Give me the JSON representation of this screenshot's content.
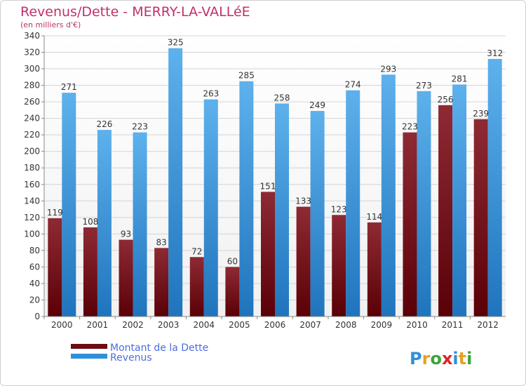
{
  "header": {
    "title": "Revenus/Dette - MERRY-LA-VALLéE",
    "subtitle": "(en milliers d'€)"
  },
  "logo": {
    "text": "Proxiti"
  },
  "colors": {
    "dette": "#6b0d12",
    "revenus": "#2f8fd8",
    "title": "#c0306a"
  },
  "chart_data": {
    "type": "bar",
    "title": "Revenus/Dette - MERRY-LA-VALLéE",
    "subtitle": "(en milliers d'€)",
    "categories": [
      "2000",
      "2001",
      "2002",
      "2003",
      "2004",
      "2005",
      "2006",
      "2007",
      "2008",
      "2009",
      "2010",
      "2011",
      "2012"
    ],
    "series": [
      {
        "name": "Montant de la Dette",
        "values": [
          119,
          108,
          93,
          83,
          72,
          60,
          151,
          133,
          123,
          114,
          223,
          256,
          239
        ]
      },
      {
        "name": "Revenus",
        "values": [
          271,
          226,
          223,
          325,
          263,
          285,
          258,
          249,
          274,
          293,
          273,
          281,
          312
        ]
      }
    ],
    "ylim": [
      0,
      340
    ],
    "yticks": [
      0,
      20,
      40,
      60,
      80,
      100,
      120,
      140,
      160,
      180,
      200,
      220,
      240,
      260,
      280,
      300,
      320,
      340
    ],
    "grid": true,
    "legend": "bottom-left"
  }
}
